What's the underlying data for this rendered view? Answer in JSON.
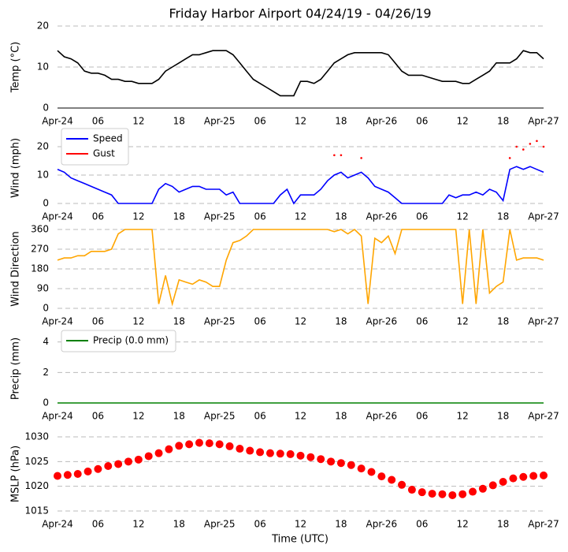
{
  "chart_data": [
    {
      "type": "line",
      "title": "Friday Harbor Airport 04/24/19 - 04/26/19",
      "ylabel": "Temp ($^\\circ$C)",
      "xlim": [
        0,
        72
      ],
      "ylim": [
        0,
        20
      ],
      "yticks": [
        0,
        10,
        20
      ],
      "grid": true,
      "xticks": [
        {
          "value": 0,
          "label": "Apr-24"
        },
        {
          "value": 6,
          "label": "06"
        },
        {
          "value": 12,
          "label": "12"
        },
        {
          "value": 18,
          "label": "18"
        },
        {
          "value": 24,
          "label": "Apr-25"
        },
        {
          "value": 30,
          "label": "06"
        },
        {
          "value": 36,
          "label": "12"
        },
        {
          "value": 42,
          "label": "18"
        },
        {
          "value": 48,
          "label": "Apr-26"
        },
        {
          "value": 54,
          "label": "06"
        },
        {
          "value": 60,
          "label": "12"
        },
        {
          "value": 66,
          "label": "18"
        },
        {
          "value": 72,
          "label": "Apr-27"
        }
      ],
      "x": [
        0,
        1,
        2,
        3,
        4,
        5,
        6,
        7,
        8,
        9,
        10,
        11,
        12,
        13,
        14,
        15,
        16,
        17,
        18,
        19,
        20,
        21,
        22,
        23,
        24,
        25,
        26,
        27,
        28,
        29,
        30,
        31,
        32,
        33,
        34,
        35,
        36,
        37,
        38,
        39,
        40,
        41,
        42,
        43,
        44,
        45,
        46,
        47,
        48,
        49,
        50,
        51,
        52,
        53,
        54,
        55,
        56,
        57,
        58,
        59,
        60,
        61,
        62,
        63,
        64,
        65,
        66,
        67,
        68,
        69,
        70,
        71,
        72
      ],
      "series": [
        {
          "color": "#000000",
          "marker": "none",
          "values": [
            14,
            12.5,
            12,
            11,
            9,
            8.5,
            8.5,
            8,
            7,
            7,
            6.5,
            6.5,
            6,
            6,
            6,
            7,
            9,
            10,
            11,
            12,
            13,
            13,
            13.5,
            14,
            14,
            14,
            13,
            11,
            9,
            7,
            6,
            5,
            4,
            3,
            3,
            3,
            6.5,
            6.5,
            6,
            7,
            9,
            11,
            12,
            13,
            13.5,
            13.5,
            13.5,
            13.5,
            13.5,
            13,
            11,
            9,
            8,
            8,
            8,
            7.5,
            7,
            6.5,
            6.5,
            6.5,
            6,
            6,
            7,
            8,
            9,
            11,
            11,
            11,
            12,
            14,
            13.5,
            13.5,
            12
          ]
        }
      ]
    },
    {
      "type": "line",
      "ylabel": "Wind (mph)",
      "xlim": [
        0,
        72
      ],
      "ylim": [
        0,
        25
      ],
      "yticks": [
        0,
        10,
        20
      ],
      "grid": true,
      "legend": "upper left",
      "xticks": [
        {
          "value": 0,
          "label": "Apr-24"
        },
        {
          "value": 6,
          "label": "06"
        },
        {
          "value": 12,
          "label": "12"
        },
        {
          "value": 18,
          "label": "18"
        },
        {
          "value": 24,
          "label": "Apr-25"
        },
        {
          "value": 30,
          "label": "06"
        },
        {
          "value": 36,
          "label": "12"
        },
        {
          "value": 42,
          "label": "18"
        },
        {
          "value": 48,
          "label": "Apr-26"
        },
        {
          "value": 54,
          "label": "06"
        },
        {
          "value": 60,
          "label": "12"
        },
        {
          "value": 66,
          "label": "18"
        },
        {
          "value": 72,
          "label": "Apr-27"
        }
      ],
      "x": [
        0,
        1,
        2,
        3,
        4,
        5,
        6,
        7,
        8,
        9,
        10,
        11,
        12,
        13,
        14,
        15,
        16,
        17,
        18,
        19,
        20,
        21,
        22,
        23,
        24,
        25,
        26,
        27,
        28,
        29,
        30,
        31,
        32,
        33,
        34,
        35,
        36,
        37,
        38,
        39,
        40,
        41,
        42,
        43,
        44,
        45,
        46,
        47,
        48,
        49,
        50,
        51,
        52,
        53,
        54,
        55,
        56,
        57,
        58,
        59,
        60,
        61,
        62,
        63,
        64,
        65,
        66,
        67,
        68,
        69,
        70,
        71,
        72
      ],
      "series": [
        {
          "name": "Speed",
          "color": "#0000ff",
          "marker": "none",
          "values": [
            12,
            11,
            9,
            8,
            7,
            6,
            5,
            4,
            3,
            0,
            0,
            0,
            0,
            0,
            0,
            5,
            7,
            6,
            4,
            5,
            6,
            6,
            5,
            5,
            5,
            3,
            4,
            0,
            0,
            0,
            0,
            0,
            0,
            3,
            5,
            0,
            3,
            3,
            3,
            5,
            8,
            10,
            11,
            9,
            10,
            11,
            9,
            6,
            5,
            4,
            2,
            0,
            0,
            0,
            0,
            0,
            0,
            0,
            3,
            2,
            3,
            3,
            4,
            3,
            5,
            4,
            1,
            12,
            13,
            12,
            13,
            12,
            11
          ]
        },
        {
          "name": "Gust",
          "color": "#ff0000",
          "marker": "dot",
          "values": [
            null,
            null,
            null,
            null,
            null,
            null,
            null,
            null,
            null,
            null,
            null,
            null,
            null,
            null,
            null,
            null,
            null,
            null,
            null,
            null,
            null,
            null,
            null,
            null,
            null,
            null,
            null,
            null,
            null,
            null,
            null,
            null,
            null,
            null,
            null,
            null,
            null,
            null,
            null,
            null,
            null,
            17,
            17,
            null,
            null,
            16,
            null,
            null,
            null,
            null,
            null,
            null,
            null,
            null,
            null,
            null,
            null,
            null,
            null,
            null,
            null,
            null,
            null,
            null,
            null,
            null,
            null,
            16,
            20,
            19,
            21,
            22,
            20
          ]
        }
      ]
    },
    {
      "type": "line",
      "ylabel": "Wind Direction",
      "xlim": [
        0,
        72
      ],
      "ylim": [
        0,
        360
      ],
      "yticks": [
        0,
        90,
        180,
        270,
        360
      ],
      "grid": true,
      "xticks": [
        {
          "value": 0,
          "label": "Apr-24"
        },
        {
          "value": 6,
          "label": "06"
        },
        {
          "value": 12,
          "label": "12"
        },
        {
          "value": 18,
          "label": "18"
        },
        {
          "value": 24,
          "label": "Apr-25"
        },
        {
          "value": 30,
          "label": "06"
        },
        {
          "value": 36,
          "label": "12"
        },
        {
          "value": 42,
          "label": "18"
        },
        {
          "value": 48,
          "label": "Apr-26"
        },
        {
          "value": 54,
          "label": "06"
        },
        {
          "value": 60,
          "label": "12"
        },
        {
          "value": 66,
          "label": "18"
        },
        {
          "value": 72,
          "label": "Apr-27"
        }
      ],
      "x": [
        0,
        1,
        2,
        3,
        4,
        5,
        6,
        7,
        8,
        9,
        10,
        11,
        12,
        13,
        14,
        15,
        16,
        17,
        18,
        19,
        20,
        21,
        22,
        23,
        24,
        25,
        26,
        27,
        28,
        29,
        30,
        31,
        32,
        33,
        34,
        35,
        36,
        37,
        38,
        39,
        40,
        41,
        42,
        43,
        44,
        45,
        46,
        47,
        48,
        49,
        50,
        51,
        52,
        53,
        54,
        55,
        56,
        57,
        58,
        59,
        60,
        61,
        62,
        63,
        64,
        65,
        66,
        67,
        68,
        69,
        70,
        71,
        72
      ],
      "series": [
        {
          "color": "#ffa500",
          "marker": "none",
          "values": [
            220,
            230,
            230,
            240,
            240,
            260,
            260,
            260,
            270,
            340,
            360,
            360,
            360,
            360,
            360,
            20,
            150,
            20,
            130,
            120,
            110,
            130,
            120,
            100,
            100,
            220,
            300,
            310,
            330,
            360,
            360,
            360,
            360,
            360,
            360,
            360,
            360,
            360,
            360,
            360,
            360,
            350,
            360,
            340,
            360,
            330,
            20,
            320,
            300,
            330,
            250,
            360,
            360,
            360,
            360,
            360,
            360,
            360,
            360,
            360,
            20,
            360,
            20,
            360,
            70,
            100,
            120,
            360,
            220,
            230,
            230,
            230,
            220
          ]
        }
      ]
    },
    {
      "type": "line",
      "ylabel": "Precip (mm)",
      "xlim": [
        0,
        72
      ],
      "ylim": [
        0,
        4.5
      ],
      "yticks": [
        0,
        2,
        4
      ],
      "grid": true,
      "legend": "upper left",
      "xticks": [
        {
          "value": 0,
          "label": "Apr-24"
        },
        {
          "value": 6,
          "label": "06"
        },
        {
          "value": 12,
          "label": "12"
        },
        {
          "value": 18,
          "label": "18"
        },
        {
          "value": 24,
          "label": "Apr-25"
        },
        {
          "value": 30,
          "label": "06"
        },
        {
          "value": 36,
          "label": "12"
        },
        {
          "value": 42,
          "label": "18"
        },
        {
          "value": 48,
          "label": "Apr-26"
        },
        {
          "value": 54,
          "label": "06"
        },
        {
          "value": 60,
          "label": "12"
        },
        {
          "value": 66,
          "label": "18"
        },
        {
          "value": 72,
          "label": "Apr-27"
        }
      ],
      "x": [
        0,
        1,
        2,
        3,
        4,
        5,
        6,
        7,
        8,
        9,
        10,
        11,
        12,
        13,
        14,
        15,
        16,
        17,
        18,
        19,
        20,
        21,
        22,
        23,
        24,
        25,
        26,
        27,
        28,
        29,
        30,
        31,
        32,
        33,
        34,
        35,
        36,
        37,
        38,
        39,
        40,
        41,
        42,
        43,
        44,
        45,
        46,
        47,
        48,
        49,
        50,
        51,
        52,
        53,
        54,
        55,
        56,
        57,
        58,
        59,
        60,
        61,
        62,
        63,
        64,
        65,
        66,
        67,
        68,
        69,
        70,
        71,
        72
      ],
      "series": [
        {
          "name": "Precip (0.0 mm)",
          "color": "#008000",
          "marker": "none",
          "values": [
            0,
            0,
            0,
            0,
            0,
            0,
            0,
            0,
            0,
            0,
            0,
            0,
            0,
            0,
            0,
            0,
            0,
            0,
            0,
            0,
            0,
            0,
            0,
            0,
            0,
            0,
            0,
            0,
            0,
            0,
            0,
            0,
            0,
            0,
            0,
            0,
            0,
            0,
            0,
            0,
            0,
            0,
            0,
            0,
            0,
            0,
            0,
            0,
            0,
            0,
            0,
            0,
            0,
            0,
            0,
            0,
            0,
            0,
            0,
            0,
            0,
            0,
            0,
            0,
            0,
            0,
            0,
            0,
            0,
            0,
            0,
            0,
            0
          ]
        }
      ]
    },
    {
      "type": "scatter",
      "ylabel": "MSLP (hPa)",
      "xlabel": "Time (UTC)",
      "xlim": [
        0,
        72
      ],
      "ylim": [
        1015,
        1030
      ],
      "yticks": [
        1015,
        1020,
        1025,
        1030
      ],
      "grid": true,
      "xticks": [
        {
          "value": 0,
          "label": "Apr-24"
        },
        {
          "value": 6,
          "label": "06"
        },
        {
          "value": 12,
          "label": "12"
        },
        {
          "value": 18,
          "label": "18"
        },
        {
          "value": 24,
          "label": "Apr-25"
        },
        {
          "value": 30,
          "label": "06"
        },
        {
          "value": 36,
          "label": "12"
        },
        {
          "value": 42,
          "label": "18"
        },
        {
          "value": 48,
          "label": "Apr-26"
        },
        {
          "value": 54,
          "label": "06"
        },
        {
          "value": 60,
          "label": "12"
        },
        {
          "value": 66,
          "label": "18"
        },
        {
          "value": 72,
          "label": "Apr-27"
        }
      ],
      "x": [
        0,
        1.5,
        3,
        4.5,
        6,
        7.5,
        9,
        10.5,
        12,
        13.5,
        15,
        16.5,
        18,
        19.5,
        21,
        22.5,
        24,
        25.5,
        27,
        28.5,
        30,
        31.5,
        33,
        34.5,
        36,
        37.5,
        39,
        40.5,
        42,
        43.5,
        45,
        46.5,
        48,
        49.5,
        51,
        52.5,
        54,
        55.5,
        57,
        58.5,
        60,
        61.5,
        63,
        64.5,
        66,
        67.5,
        69,
        70.5,
        72
      ],
      "series": [
        {
          "color": "#ff0000",
          "marker": "dot",
          "values": [
            1022.1,
            1022.3,
            1022.5,
            1023,
            1023.5,
            1024.1,
            1024.5,
            1025,
            1025.4,
            1026.1,
            1026.7,
            1027.5,
            1028.2,
            1028.5,
            1028.8,
            1028.7,
            1028.5,
            1028.1,
            1027.6,
            1027.2,
            1026.9,
            1026.7,
            1026.6,
            1026.5,
            1026.2,
            1025.9,
            1025.5,
            1025,
            1024.7,
            1024.3,
            1023.6,
            1022.9,
            1022,
            1021.3,
            1020.3,
            1019.3,
            1018.8,
            1018.5,
            1018.4,
            1018.2,
            1018.4,
            1018.9,
            1019.5,
            1020.2,
            1020.9,
            1021.6,
            1021.9,
            1022.1,
            1022.2
          ]
        }
      ]
    }
  ]
}
